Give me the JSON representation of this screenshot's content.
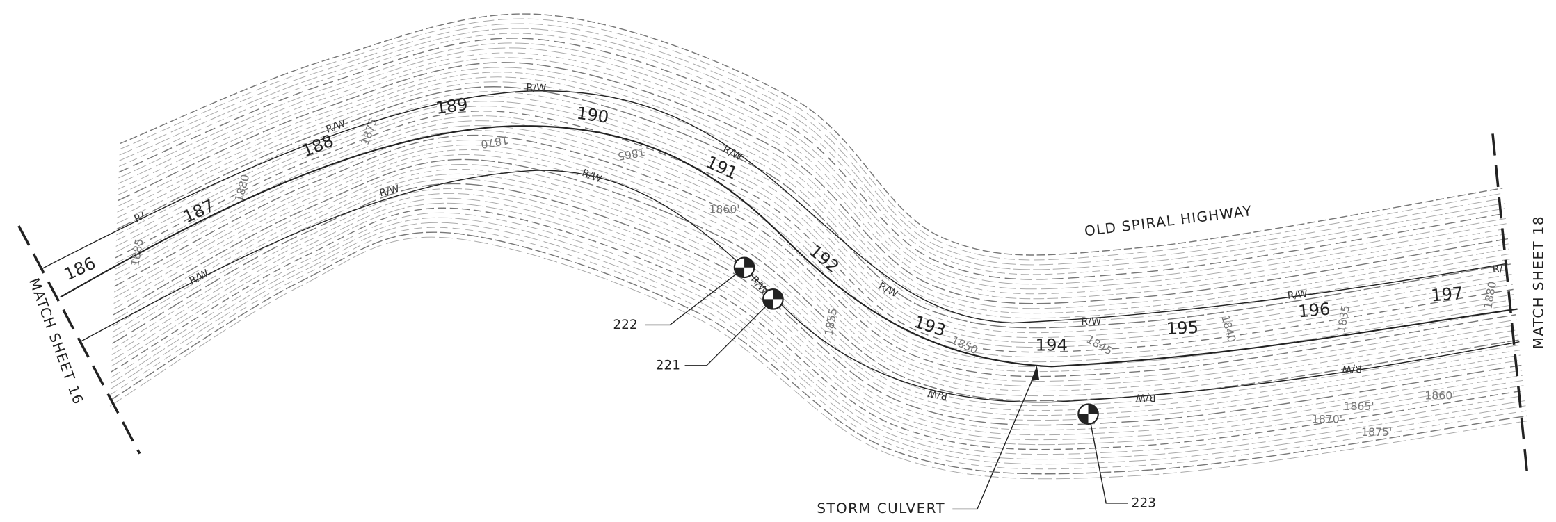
{
  "stations": [
    "186",
    "187",
    "188",
    "189",
    "190",
    "191",
    "192",
    "193",
    "194",
    "195",
    "196",
    "197"
  ],
  "right_of_way_labels": [
    "R/W",
    "R/W",
    "R/W",
    "R/W",
    "R/W",
    "R/",
    "R/W",
    "R/W",
    "R/W",
    "R/W",
    "R/",
    "R/W",
    "R/W",
    "R/W",
    "R/W"
  ],
  "contour_labels": [
    "1885",
    "1880",
    "1875",
    "1870",
    "1865",
    "1860'",
    "1855",
    "1850",
    "1845",
    "1840",
    "1835",
    "1880",
    "1860'",
    "1865'",
    "1870'",
    "1875'"
  ],
  "highway_label": "OLD SPIRAL HIGHWAY",
  "match_sheets": [
    "MATCH SHEET 16",
    "MATCH SHEET 18"
  ],
  "storm_culvert": "STORM CULVERT",
  "monuments": [
    "222",
    "221",
    "223"
  ]
}
